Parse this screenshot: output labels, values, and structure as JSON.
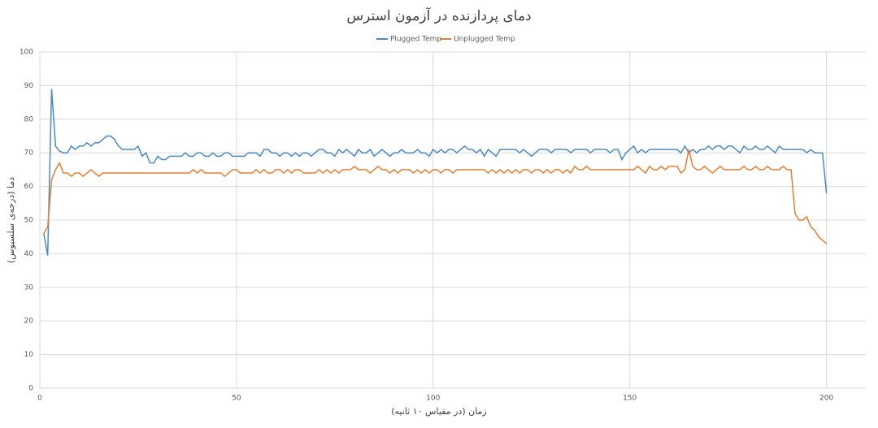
{
  "chart_data": {
    "type": "line",
    "title": "دمای پردازنده در آزمون استرس",
    "x_label": "زمان (در مقیاس ۱۰ ثانیه)",
    "y_label": "دما (درجه‌ی سلسیوس)",
    "x": [
      1,
      2,
      3,
      4,
      5,
      6,
      7,
      8,
      9,
      10,
      11,
      12,
      13,
      14,
      15,
      16,
      17,
      18,
      19,
      20,
      21,
      22,
      23,
      24,
      25,
      26,
      27,
      28,
      29,
      30,
      31,
      32,
      33,
      34,
      35,
      36,
      37,
      38,
      39,
      40,
      41,
      42,
      43,
      44,
      45,
      46,
      47,
      48,
      49,
      50,
      51,
      52,
      53,
      54,
      55,
      56,
      57,
      58,
      59,
      60,
      61,
      62,
      63,
      64,
      65,
      66,
      67,
      68,
      69,
      70,
      71,
      72,
      73,
      74,
      75,
      76,
      77,
      78,
      79,
      80,
      81,
      82,
      83,
      84,
      85,
      86,
      87,
      88,
      89,
      90,
      91,
      92,
      93,
      94,
      95,
      96,
      97,
      98,
      99,
      100,
      101,
      102,
      103,
      104,
      105,
      106,
      107,
      108,
      109,
      110,
      111,
      112,
      113,
      114,
      115,
      116,
      117,
      118,
      119,
      120,
      121,
      122,
      123,
      124,
      125,
      126,
      127,
      128,
      129,
      130,
      131,
      132,
      133,
      134,
      135,
      136,
      137,
      138,
      139,
      140,
      141,
      142,
      143,
      144,
      145,
      146,
      147,
      148,
      149,
      150,
      151,
      152,
      153,
      154,
      155,
      156,
      157,
      158,
      159,
      160,
      161,
      162,
      163,
      164,
      165,
      166,
      167,
      168,
      169,
      170,
      171,
      172,
      173,
      174,
      175,
      176,
      177,
      178,
      179,
      180,
      181,
      182,
      183,
      184,
      185,
      186,
      187,
      188,
      189,
      190,
      191,
      192,
      193,
      194,
      195,
      196,
      197,
      198,
      199,
      200
    ],
    "series": [
      {
        "name": "Plugged Temp",
        "color": "#4a8ac4",
        "values": [
          46,
          39.5,
          89,
          72,
          70.5,
          70,
          70,
          72,
          71,
          72,
          72,
          73,
          72,
          73,
          73,
          74,
          75,
          75,
          74,
          72,
          71,
          71,
          71,
          71,
          72,
          69,
          70,
          67,
          67,
          69,
          68,
          68,
          69,
          69,
          69,
          69,
          70,
          69,
          69,
          70,
          70,
          69,
          69,
          70,
          69,
          69,
          70,
          70,
          69,
          69,
          69,
          69,
          70,
          70,
          70,
          69,
          71,
          71,
          70,
          70,
          69,
          70,
          70,
          69,
          70,
          69,
          70,
          70,
          69,
          70,
          71,
          71,
          70,
          70,
          69,
          71,
          70,
          71,
          70,
          69,
          71,
          70,
          70,
          71,
          69,
          70,
          71,
          70,
          69,
          70,
          70,
          71,
          70,
          70,
          70,
          71,
          70,
          70,
          69,
          71,
          70,
          71,
          70,
          71,
          71,
          70,
          71,
          72,
          71,
          71,
          70,
          71,
          69,
          71,
          70,
          69,
          71,
          71,
          71,
          71,
          71,
          70,
          71,
          70,
          69,
          70,
          71,
          71,
          71,
          70,
          71,
          71,
          71,
          71,
          70,
          71,
          71,
          71,
          71,
          70,
          71,
          71,
          71,
          71,
          70,
          71,
          71,
          68,
          70,
          71,
          72,
          70,
          71,
          70,
          71,
          71,
          71,
          71,
          71,
          71,
          71,
          71,
          70,
          72,
          70,
          71,
          70,
          71,
          71,
          72,
          71,
          72,
          72,
          71,
          72,
          72,
          71,
          70,
          72,
          71,
          71,
          72,
          71,
          71,
          72,
          71,
          70,
          72,
          71,
          71,
          71,
          71,
          71,
          71,
          70,
          71,
          70,
          70,
          70,
          58
        ]
      },
      {
        "name": "Unplugged Temp",
        "color": "#e67e2e",
        "values": [
          46,
          48,
          62,
          65,
          67,
          64,
          64,
          63,
          64,
          64,
          63,
          64,
          65,
          64,
          63,
          64,
          64,
          64,
          64,
          64,
          64,
          64,
          64,
          64,
          64,
          64,
          64,
          64,
          64,
          64,
          64,
          64,
          64,
          64,
          64,
          64,
          64,
          64,
          65,
          64,
          65,
          64,
          64,
          64,
          64,
          64,
          63,
          64,
          65,
          65,
          64,
          64,
          64,
          64,
          65,
          64,
          65,
          64,
          64,
          65,
          65,
          64,
          65,
          64,
          65,
          65,
          64,
          64,
          64,
          64,
          65,
          64,
          65,
          64,
          65,
          64,
          65,
          65,
          65,
          66,
          65,
          65,
          65,
          64,
          65,
          66,
          65,
          65,
          64,
          65,
          64,
          65,
          65,
          65,
          64,
          65,
          64,
          65,
          64,
          65,
          65,
          64,
          65,
          65,
          64,
          65,
          65,
          65,
          65,
          65,
          65,
          65,
          65,
          64,
          65,
          64,
          65,
          64,
          65,
          64,
          65,
          64,
          65,
          65,
          64,
          65,
          65,
          64,
          65,
          64,
          65,
          65,
          64,
          65,
          64,
          66,
          65,
          65,
          66,
          65,
          65,
          65,
          65,
          65,
          65,
          65,
          65,
          65,
          65,
          65,
          65,
          66,
          65,
          64,
          66,
          65,
          65,
          66,
          65,
          66,
          66,
          66,
          64,
          65,
          71,
          66,
          65,
          65,
          66,
          65,
          64,
          65,
          66,
          65,
          65,
          65,
          65,
          65,
          66,
          65,
          65,
          66,
          65,
          65,
          66,
          65,
          65,
          65,
          66,
          65,
          65,
          52,
          50,
          50,
          51,
          48,
          47,
          45,
          44,
          43
        ]
      }
    ],
    "xlim": [
      0,
      210
    ],
    "xticks": [
      0,
      50,
      100,
      150,
      200
    ],
    "ylim": [
      0,
      100
    ],
    "yticks": [
      0,
      10,
      20,
      30,
      40,
      50,
      60,
      70,
      80,
      90,
      100
    ],
    "grid": true,
    "legend": "top"
  }
}
